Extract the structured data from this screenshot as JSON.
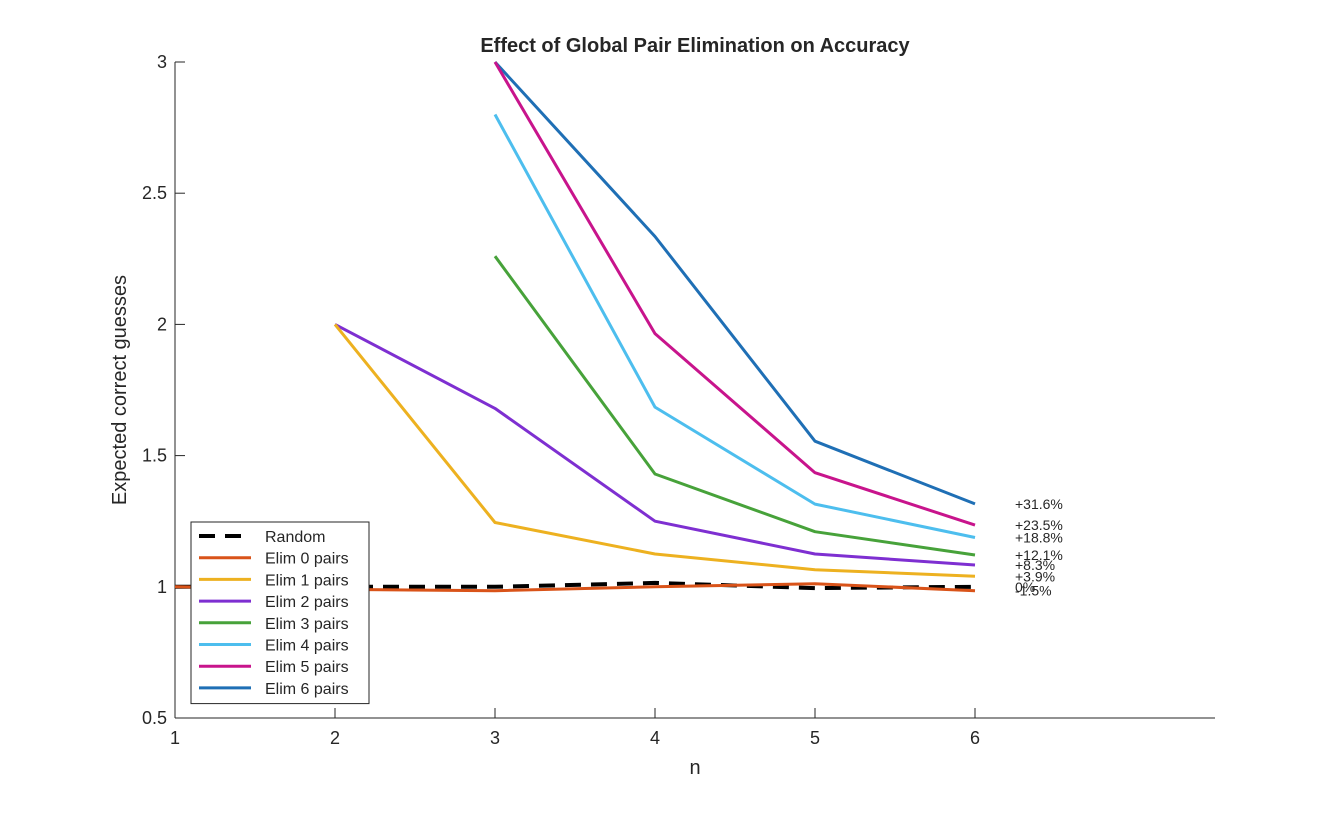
{
  "chart_data": {
    "type": "line",
    "title": "Effect of Global Pair Elimination on Accuracy",
    "xlabel": "n",
    "ylabel": "Expected correct guesses",
    "xlim": [
      1,
      7.5
    ],
    "ylim": [
      0.5,
      3
    ],
    "xticks": [
      1,
      2,
      3,
      4,
      5,
      6
    ],
    "yticks": [
      0.5,
      1,
      1.5,
      2,
      2.5,
      3
    ],
    "xtick_labels": [
      "1",
      "2",
      "3",
      "4",
      "5",
      "6"
    ],
    "ytick_labels": [
      "0.5",
      "1",
      "1.5",
      "2",
      "2.5",
      "3"
    ],
    "grid": false,
    "legend_position": "bottom-left",
    "series": [
      {
        "name": "Random",
        "style": "dashed",
        "color": "#000000",
        "x": [
          1,
          2,
          3,
          4,
          5,
          6
        ],
        "y": [
          1.0,
          1.0,
          1.0,
          1.015,
          0.995,
          1.0
        ]
      },
      {
        "name": "Elim 0 pairs",
        "style": "solid",
        "color": "#D95319",
        "x": [
          1,
          2,
          3,
          4,
          5,
          6
        ],
        "y": [
          1.0,
          0.99,
          0.985,
          1.0,
          1.012,
          0.985
        ]
      },
      {
        "name": "Elim 1 pairs",
        "style": "solid",
        "color": "#EDB120",
        "x": [
          2,
          3,
          4,
          5,
          6
        ],
        "y": [
          2.0,
          1.245,
          1.125,
          1.065,
          1.04
        ]
      },
      {
        "name": "Elim 2 pairs",
        "style": "solid",
        "color": "#7E2FD1",
        "x": [
          2,
          3,
          4,
          5,
          6
        ],
        "y": [
          2.0,
          1.68,
          1.25,
          1.125,
          1.083
        ]
      },
      {
        "name": "Elim 3 pairs",
        "style": "solid",
        "color": "#47A23A",
        "x": [
          3,
          4,
          5,
          6
        ],
        "y": [
          2.26,
          1.43,
          1.21,
          1.121
        ]
      },
      {
        "name": "Elim 4 pairs",
        "style": "solid",
        "color": "#4DBEEE",
        "x": [
          3,
          4,
          5,
          6
        ],
        "y": [
          2.8,
          1.685,
          1.315,
          1.188
        ]
      },
      {
        "name": "Elim 5 pairs",
        "style": "solid",
        "color": "#C8148C",
        "x": [
          3,
          4,
          5,
          6
        ],
        "y": [
          3.0,
          1.965,
          1.435,
          1.235
        ]
      },
      {
        "name": "Elim 6 pairs",
        "style": "solid",
        "color": "#1F6FB5",
        "x": [
          3,
          4,
          5,
          6
        ],
        "y": [
          3.0,
          2.335,
          1.555,
          1.316
        ]
      }
    ],
    "annotations": [
      {
        "text": "+31.6%",
        "x": 6.25,
        "y": 1.316
      },
      {
        "text": "+23.5%",
        "x": 6.25,
        "y": 1.235
      },
      {
        "text": "+18.8%",
        "x": 6.25,
        "y": 1.188
      },
      {
        "text": "+12.1%",
        "x": 6.25,
        "y": 1.121
      },
      {
        "text": "+8.3%",
        "x": 6.25,
        "y": 1.083
      },
      {
        "text": "+3.9%",
        "x": 6.25,
        "y": 1.04
      },
      {
        "text": "0%",
        "x": 6.25,
        "y": 1.0
      },
      {
        "text": "-1.5%",
        "x": 6.25,
        "y": 0.985
      }
    ]
  }
}
